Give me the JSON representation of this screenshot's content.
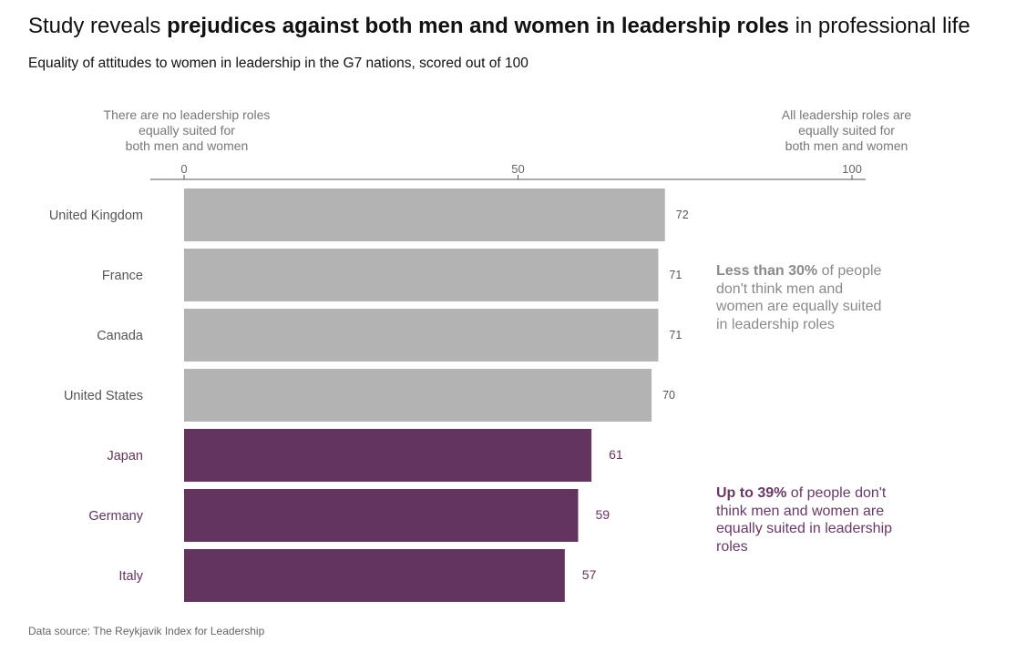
{
  "title": {
    "prefix": "Study reveals ",
    "bold": "prejudices against both men and women in leadership roles",
    "suffix": " in professional life"
  },
  "subtitle": "Equality of attitudes to women in leadership in the G7 nations, scored out of 100",
  "axis_end_labels": {
    "left": [
      "There are no leadership roles",
      "equally suited for",
      "both men and women"
    ],
    "right": [
      "All leadership roles are",
      "equally suited for",
      "both men and women"
    ]
  },
  "annotations": {
    "grey": {
      "bold": "Less than 30%",
      "rest": " of people don't think men and women are equally suited in leadership roles"
    },
    "purple": {
      "bold": "Up to 39%",
      "rest": " of people don't think men and women are equally suited in leadership roles"
    }
  },
  "source": "Data source: The Reykjavik Index for Leadership",
  "colors": {
    "grey": "#b3b3b3",
    "purple": "#63345e",
    "label_grey": "#555555",
    "label_purple": "#63345e"
  },
  "chart_data": {
    "type": "bar",
    "orientation": "horizontal",
    "categories": [
      "United Kingdom",
      "France",
      "Canada",
      "United States",
      "Japan",
      "Germany",
      "Italy"
    ],
    "values": [
      72,
      71,
      71,
      70,
      61,
      59,
      57
    ],
    "groups": [
      "grey",
      "grey",
      "grey",
      "grey",
      "purple",
      "purple",
      "purple"
    ],
    "xlim": [
      0,
      100
    ],
    "xticks": [
      0,
      50,
      100
    ],
    "axis_position": "top",
    "grid": false,
    "legend": "none"
  }
}
